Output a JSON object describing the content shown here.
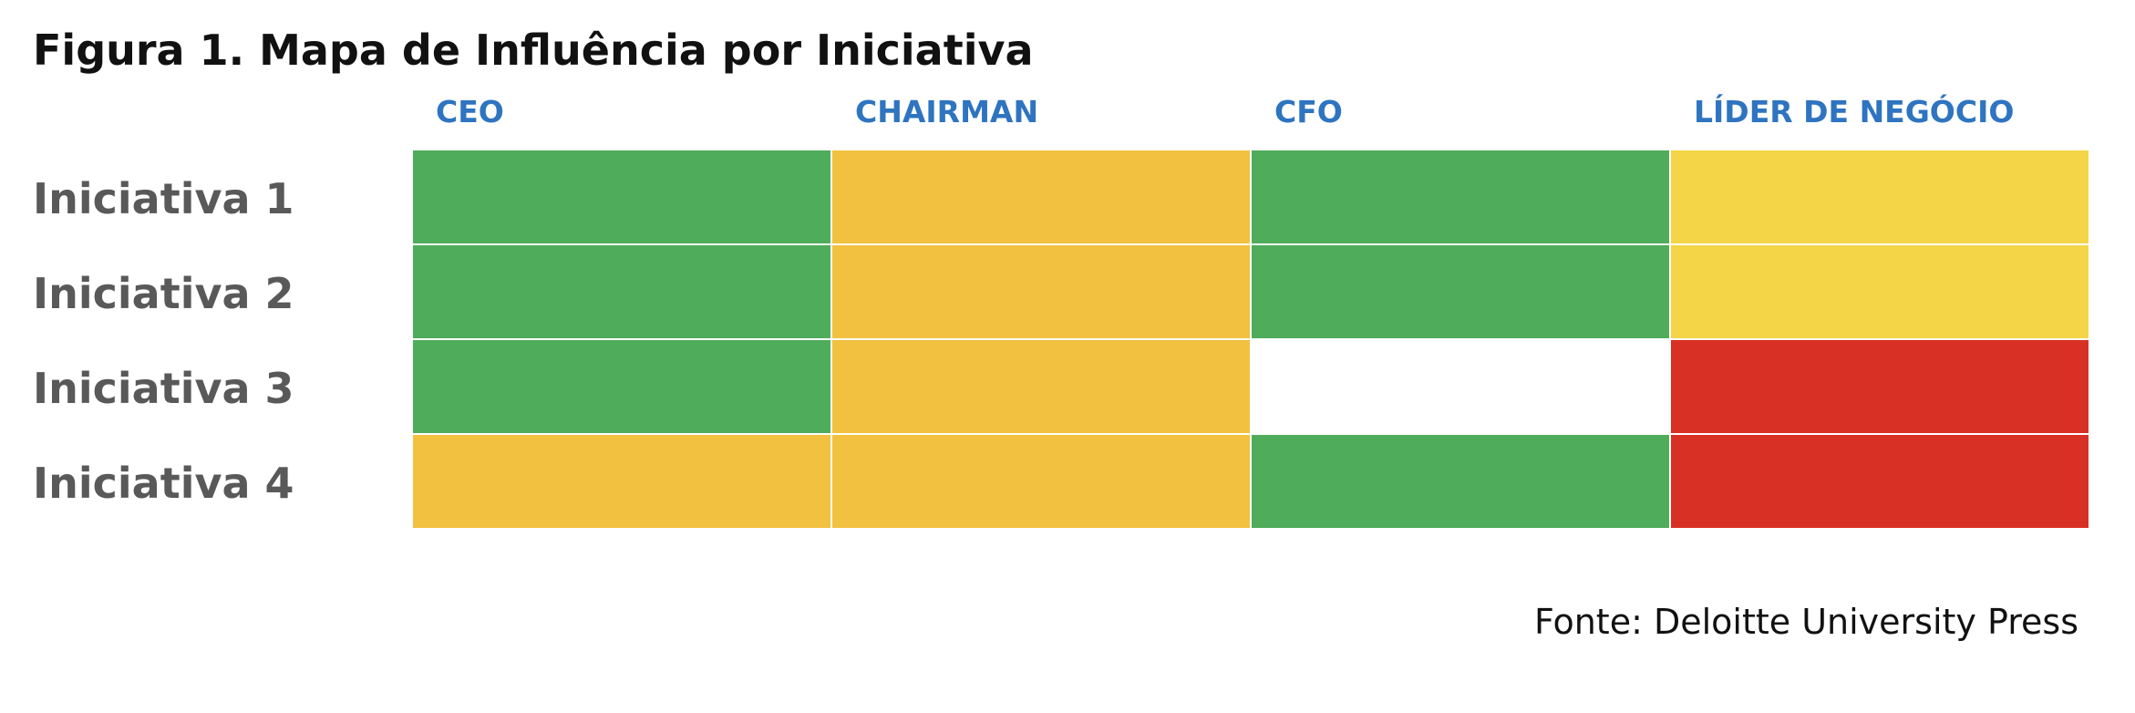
{
  "title": "Figura 1. Mapa de Influência por Iniciativa",
  "source": "Fonte: Deloitte University Press",
  "colors": {
    "green": "#4fac5b",
    "orange": "#f3c140",
    "yellow": "#f5d548",
    "red": "#d93025",
    "white": "#ffffff",
    "header": "#2e74c0"
  },
  "chart_data": {
    "type": "heatmap",
    "title": "Figura 1. Mapa de Influência por Iniciativa",
    "columns": [
      "CEO",
      "CHAIRMAN",
      "CFO",
      "LÍDER DE NEGÓCIO"
    ],
    "rows": [
      "Iniciativa 1",
      "Iniciativa 2",
      "Iniciativa 3",
      "Iniciativa 4"
    ],
    "cells": [
      [
        "green",
        "orange",
        "green",
        "yellow"
      ],
      [
        "green",
        "orange",
        "green",
        "yellow"
      ],
      [
        "green",
        "orange",
        "white",
        "red"
      ],
      [
        "orange",
        "orange",
        "green",
        "red"
      ]
    ]
  }
}
